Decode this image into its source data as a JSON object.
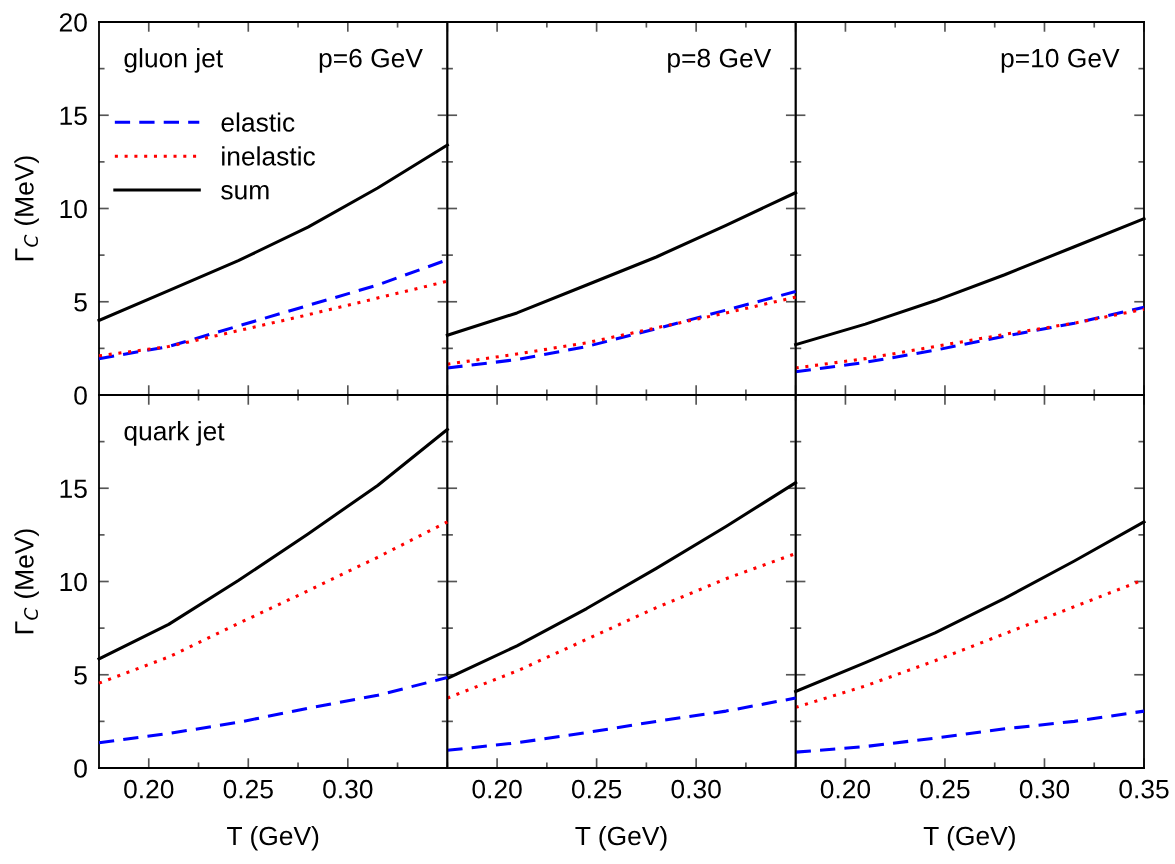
{
  "chart_data": [
    {
      "type": "line",
      "title": "p=6 GeV",
      "annotations": [
        "gluon jet"
      ],
      "ylabel": "Γ$_{C}$ (MeV)",
      "x": [
        0.175,
        0.21,
        0.245,
        0.28,
        0.315,
        0.35
      ],
      "xlim": [
        0.175,
        0.35
      ],
      "ylim": [
        0,
        20
      ],
      "xticks": [
        0.2,
        {
          "value": 0.225,
          "label": null
        },
        0.25,
        {
          "value": 0.275,
          "label": null
        },
        0.3,
        {
          "value": 0.325,
          "label": null
        },
        0.35
      ],
      "yticks": [
        0,
        {
          "value": 2.5,
          "label": null
        },
        5,
        {
          "value": 7.5,
          "label": null
        },
        10,
        {
          "value": 12.5,
          "label": null
        },
        15,
        {
          "value": 17.5,
          "label": null
        },
        20
      ],
      "tick_labels": "y",
      "legend": "top left",
      "grid": false,
      "series": [
        {
          "name": "elastic",
          "color": "#0000ff",
          "line_style": "dashed",
          "values": [
            1.95,
            2.6,
            3.7,
            4.8,
            5.9,
            7.25
          ]
        },
        {
          "name": "inelastic",
          "color": "#ff0000",
          "line_style": "dotted",
          "values": [
            2.1,
            2.6,
            3.45,
            4.3,
            5.2,
            6.1
          ]
        },
        {
          "name": "sum",
          "color": "#000000",
          "line_style": "solid",
          "values": [
            4.0,
            5.6,
            7.2,
            9.0,
            11.1,
            13.4
          ]
        }
      ]
    },
    {
      "type": "line",
      "title": "p=8 GeV",
      "x": [
        0.175,
        0.21,
        0.245,
        0.28,
        0.315,
        0.35
      ],
      "xlim": [
        0.175,
        0.35
      ],
      "ylim": [
        0,
        20
      ],
      "xticks": [
        0.2,
        {
          "value": 0.225,
          "label": null
        },
        0.25,
        {
          "value": 0.275,
          "label": null
        },
        0.3,
        {
          "value": 0.325,
          "label": null
        },
        0.35
      ],
      "yticks": [
        0,
        {
          "value": 2.5,
          "label": null
        },
        5,
        {
          "value": 7.5,
          "label": null
        },
        10,
        {
          "value": 12.5,
          "label": null
        },
        15,
        {
          "value": 17.5,
          "label": null
        },
        20
      ],
      "tick_labels": false,
      "grid": false,
      "series": [
        {
          "color": "#0000ff",
          "line_style": "dashed",
          "values": [
            1.45,
            1.9,
            2.6,
            3.55,
            4.55,
            5.55
          ]
        },
        {
          "color": "#ff0000",
          "line_style": "dotted",
          "values": [
            1.65,
            2.2,
            2.8,
            3.6,
            4.4,
            5.25
          ]
        },
        {
          "color": "#000000",
          "line_style": "solid",
          "values": [
            3.2,
            4.4,
            5.9,
            7.4,
            9.1,
            10.85
          ]
        }
      ]
    },
    {
      "type": "line",
      "title": "p=10 GeV",
      "x": [
        0.175,
        0.21,
        0.245,
        0.28,
        0.315,
        0.35
      ],
      "xlim": [
        0.175,
        0.35
      ],
      "ylim": [
        0,
        20
      ],
      "xticks": [
        0.2,
        {
          "value": 0.225,
          "label": null
        },
        0.25,
        {
          "value": 0.275,
          "label": null
        },
        0.3,
        {
          "value": 0.325,
          "label": null
        },
        0.35
      ],
      "yticks": [
        0,
        {
          "value": 2.5,
          "label": null
        },
        5,
        {
          "value": 7.5,
          "label": null
        },
        10,
        {
          "value": 12.5,
          "label": null
        },
        15,
        {
          "value": 17.5,
          "label": null
        },
        20
      ],
      "tick_labels": false,
      "grid": false,
      "series": [
        {
          "color": "#0000ff",
          "line_style": "dashed",
          "values": [
            1.25,
            1.75,
            2.4,
            3.15,
            3.85,
            4.7
          ]
        },
        {
          "color": "#ff0000",
          "line_style": "dotted",
          "values": [
            1.45,
            1.95,
            2.6,
            3.25,
            3.85,
            4.6
          ]
        },
        {
          "color": "#000000",
          "line_style": "solid",
          "values": [
            2.7,
            3.8,
            5.05,
            6.45,
            7.95,
            9.45
          ]
        }
      ]
    },
    {
      "type": "line",
      "annotations": [
        "quark jet"
      ],
      "xlabel": "T (GeV)",
      "ylabel": "Γ$_{C}$ (MeV)",
      "x": [
        0.175,
        0.21,
        0.245,
        0.28,
        0.315,
        0.35
      ],
      "xlim": [
        0.175,
        0.35
      ],
      "ylim": [
        0,
        20
      ],
      "xticks": [
        {
          "value": 0.2,
          "label": "0.20"
        },
        {
          "value": 0.225,
          "label": null
        },
        {
          "value": 0.25,
          "label": "0.25"
        },
        {
          "value": 0.275,
          "label": null
        },
        {
          "value": 0.3,
          "label": "0.30"
        },
        {
          "value": 0.325,
          "label": null
        },
        {
          "value": 0.35,
          "label": null
        }
      ],
      "yticks": [
        0,
        {
          "value": 2.5,
          "label": null
        },
        5,
        {
          "value": 7.5,
          "label": null
        },
        10,
        {
          "value": 12.5,
          "label": null
        },
        15,
        {
          "value": 17.5,
          "label": null
        },
        {
          "value": 20,
          "label": null
        }
      ],
      "grid": false,
      "series": [
        {
          "color": "#0000ff",
          "line_style": "dashed",
          "values": [
            1.35,
            1.85,
            2.45,
            3.2,
            3.9,
            4.85
          ]
        },
        {
          "color": "#ff0000",
          "line_style": "dotted",
          "values": [
            4.55,
            5.95,
            7.75,
            9.5,
            11.3,
            13.2
          ]
        },
        {
          "color": "#000000",
          "line_style": "solid",
          "values": [
            5.85,
            7.7,
            10.05,
            12.55,
            15.15,
            18.15
          ]
        }
      ]
    },
    {
      "type": "line",
      "xlabel": "T (GeV)",
      "x": [
        0.175,
        0.21,
        0.245,
        0.28,
        0.315,
        0.35
      ],
      "xlim": [
        0.175,
        0.35
      ],
      "ylim": [
        0,
        20
      ],
      "xticks": [
        {
          "value": 0.2,
          "label": "0.20"
        },
        {
          "value": 0.225,
          "label": null
        },
        {
          "value": 0.25,
          "label": "0.25"
        },
        {
          "value": 0.275,
          "label": null
        },
        {
          "value": 0.3,
          "label": "0.30"
        },
        {
          "value": 0.325,
          "label": null
        },
        {
          "value": 0.35,
          "label": null
        }
      ],
      "yticks": [
        0,
        {
          "value": 2.5,
          "label": null
        },
        5,
        {
          "value": 7.5,
          "label": null
        },
        10,
        {
          "value": 12.5,
          "label": null
        },
        15,
        {
          "value": 17.5,
          "label": null
        },
        20
      ],
      "tick_labels": "x",
      "grid": false,
      "series": [
        {
          "color": "#0000ff",
          "line_style": "dashed",
          "values": [
            0.95,
            1.35,
            1.9,
            2.5,
            3.05,
            3.75
          ]
        },
        {
          "color": "#ff0000",
          "line_style": "dotted",
          "values": [
            3.75,
            5.2,
            6.9,
            8.6,
            10.15,
            11.5
          ]
        },
        {
          "color": "#000000",
          "line_style": "solid",
          "values": [
            4.8,
            6.55,
            8.55,
            10.7,
            12.95,
            15.3
          ]
        }
      ]
    },
    {
      "type": "line",
      "xlabel": "T (GeV)",
      "x": [
        0.175,
        0.21,
        0.245,
        0.28,
        0.315,
        0.35
      ],
      "xlim": [
        0.175,
        0.35
      ],
      "ylim": [
        0,
        20
      ],
      "xticks": [
        {
          "value": 0.2,
          "label": "0.20"
        },
        {
          "value": 0.225,
          "label": null
        },
        {
          "value": 0.25,
          "label": "0.25"
        },
        {
          "value": 0.275,
          "label": null
        },
        {
          "value": 0.3,
          "label": "0.30"
        },
        {
          "value": 0.325,
          "label": null
        },
        {
          "value": 0.35,
          "label": "0.35"
        }
      ],
      "yticks": [
        0,
        {
          "value": 2.5,
          "label": null
        },
        5,
        {
          "value": 7.5,
          "label": null
        },
        10,
        {
          "value": 12.5,
          "label": null
        },
        15,
        {
          "value": 17.5,
          "label": null
        },
        20
      ],
      "tick_labels": "x",
      "grid": false,
      "series": [
        {
          "color": "#0000ff",
          "line_style": "dashed",
          "values": [
            0.85,
            1.15,
            1.6,
            2.1,
            2.5,
            3.05
          ]
        },
        {
          "color": "#ff0000",
          "line_style": "dotted",
          "values": [
            3.25,
            4.4,
            5.75,
            7.2,
            8.65,
            10.1
          ]
        },
        {
          "color": "#000000",
          "line_style": "solid",
          "values": [
            4.1,
            5.65,
            7.25,
            9.1,
            11.1,
            13.2
          ]
        }
      ]
    }
  ]
}
